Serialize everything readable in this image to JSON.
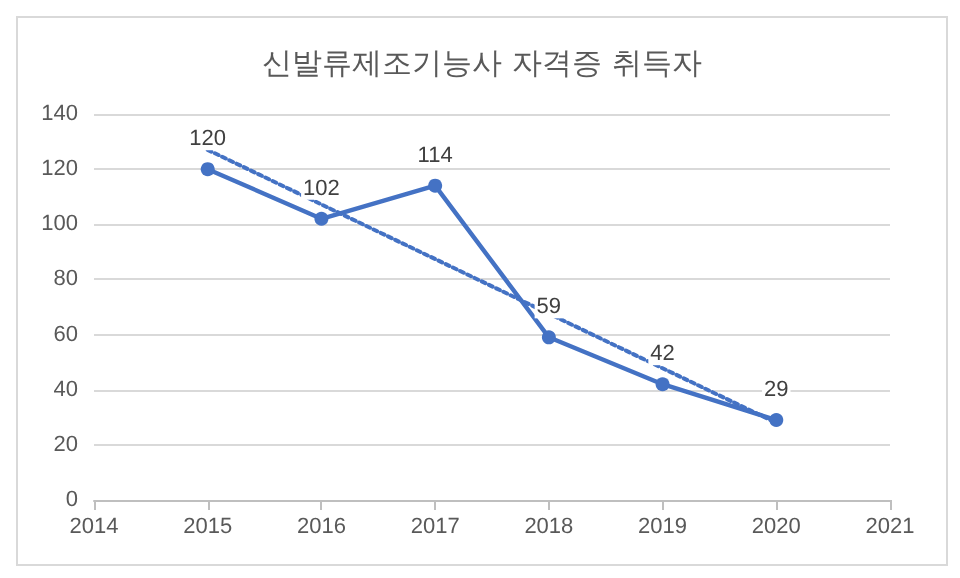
{
  "chart_data": {
    "type": "line",
    "title": "신발류제조기능사 자격증 취득자",
    "x": [
      2015,
      2016,
      2017,
      2018,
      2019,
      2020
    ],
    "series": [
      {
        "color": "#4472c4",
        "values": [
          120,
          102,
          114,
          59,
          42,
          29
        ],
        "value_labels": [
          "120",
          "102",
          "114",
          "59",
          "42",
          "29"
        ],
        "marker": "circle",
        "line_style": "solid"
      },
      {
        "type": "line",
        "color": "#4472c4",
        "x": [
          2015,
          2020
        ],
        "values": [
          127,
          28
        ],
        "marker": "none",
        "line_style": "dotted"
      }
    ],
    "xlim": [
      2014,
      2021
    ],
    "xticks": [
      2014,
      2015,
      2016,
      2017,
      2018,
      2019,
      2020,
      2021
    ],
    "ylim": [
      0,
      140
    ],
    "yticks": [
      0,
      20,
      40,
      60,
      80,
      100,
      120,
      140
    ],
    "grid": "y"
  }
}
